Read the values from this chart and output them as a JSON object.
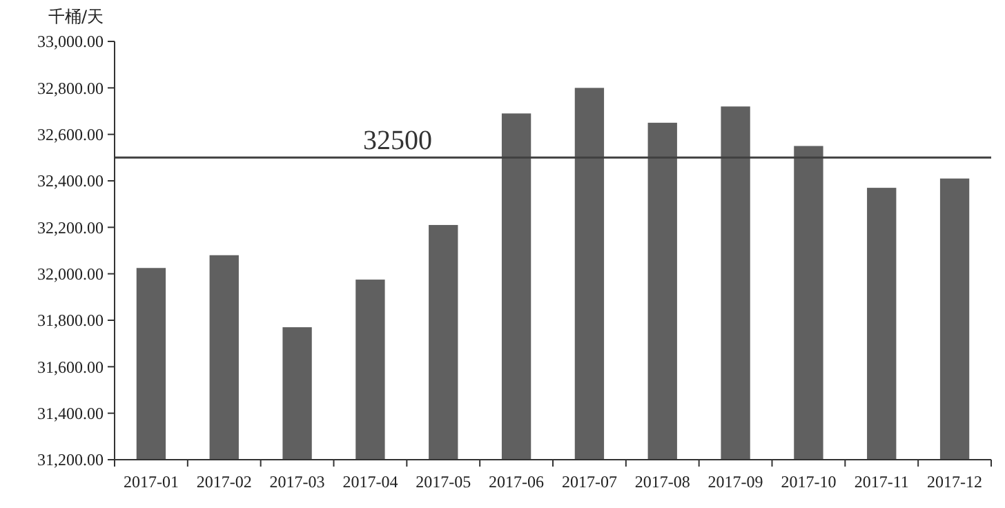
{
  "chart_data": {
    "type": "bar",
    "ylabel": "千桶/天",
    "categories": [
      "2017-01",
      "2017-02",
      "2017-03",
      "2017-04",
      "2017-05",
      "2017-06",
      "2017-07",
      "2017-08",
      "2017-09",
      "2017-10",
      "2017-11",
      "2017-12"
    ],
    "values": [
      32025,
      32080,
      31770,
      31975,
      32210,
      32690,
      32800,
      32650,
      32720,
      32550,
      32370,
      32410
    ],
    "color": "#606060",
    "ylim": [
      31200,
      33000
    ],
    "yticks": [
      {
        "value": 31200,
        "label": "31,200.00"
      },
      {
        "value": 31400,
        "label": "31,400.00"
      },
      {
        "value": 31600,
        "label": "31,600.00"
      },
      {
        "value": 31800,
        "label": "31,800.00"
      },
      {
        "value": 32000,
        "label": "32,000.00"
      },
      {
        "value": 32200,
        "label": "32,200.00"
      },
      {
        "value": 32400,
        "label": "32,400.00"
      },
      {
        "value": 32600,
        "label": "32,600.00"
      },
      {
        "value": 32800,
        "label": "32,800.00"
      },
      {
        "value": 33000,
        "label": "33,000.00"
      }
    ],
    "ref_lines": [
      {
        "axis": "y",
        "value": 32500,
        "label": "32500",
        "color": "#404040"
      }
    ]
  }
}
